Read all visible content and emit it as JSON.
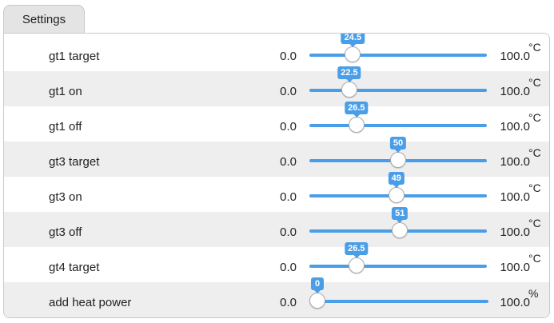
{
  "tab": {
    "label": "Settings"
  },
  "rows": [
    {
      "label": "gt1 target",
      "min": "0.0",
      "max": "100.0",
      "unit": "°C",
      "value": 24.5,
      "value_label": "24.5"
    },
    {
      "label": "gt1 on",
      "min": "0.0",
      "max": "100.0",
      "unit": "°C",
      "value": 22.5,
      "value_label": "22.5"
    },
    {
      "label": "gt1 off",
      "min": "0.0",
      "max": "100.0",
      "unit": "°C",
      "value": 26.5,
      "value_label": "26.5"
    },
    {
      "label": "gt3 target",
      "min": "0.0",
      "max": "100.0",
      "unit": "°C",
      "value": 50,
      "value_label": "50"
    },
    {
      "label": "gt3 on",
      "min": "0.0",
      "max": "100.0",
      "unit": "°C",
      "value": 49,
      "value_label": "49"
    },
    {
      "label": "gt3 off",
      "min": "0.0",
      "max": "100.0",
      "unit": "°C",
      "value": 51,
      "value_label": "51"
    },
    {
      "label": "gt4 target",
      "min": "0.0",
      "max": "100.0",
      "unit": "°C",
      "value": 26.5,
      "value_label": "26.5"
    },
    {
      "label": "add heat power",
      "min": "0.0",
      "max": "100.0",
      "unit": "%",
      "value": 0,
      "value_label": "0"
    }
  ],
  "colors": {
    "accent": "#4a9ee8",
    "row_alt": "#eeeeee",
    "tab": "#e4e4e4"
  }
}
